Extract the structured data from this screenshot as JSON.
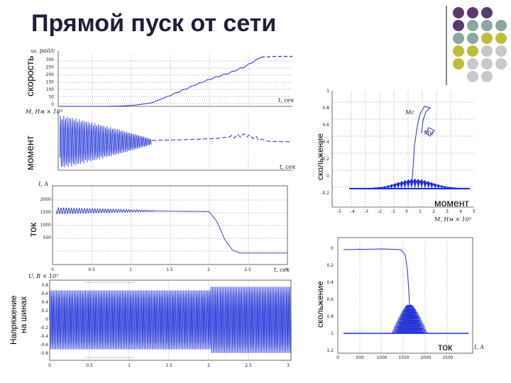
{
  "title": "Прямой пуск от сети",
  "colors": {
    "title": "#1f1f3a",
    "signal": "#1d2fd6",
    "dot_purple": "#5a3a6e",
    "dot_teal": "#8aa6a5",
    "dot_olive": "#bdbd3a",
    "dot_gray": "#c8c8cc"
  },
  "labels": {
    "speed": "скорость",
    "torque": "момент",
    "current": "ток",
    "voltage_line1": "Напряжение",
    "voltage_line2": "на шинах",
    "slip_top": "скольжение",
    "slip_bottom": "скольжение",
    "torque_right": "момент",
    "current_right": "ток"
  },
  "chart_data": [
    {
      "type": "line",
      "name": "speed",
      "axis_label_y": "ω, рад/с",
      "axis_label_x": "t, сек",
      "x": [
        0,
        0.2,
        0.4,
        0.6,
        0.8,
        1.0,
        1.2,
        1.4,
        1.6,
        1.8,
        2.0,
        2.2,
        2.4,
        2.6,
        2.8,
        3.0
      ],
      "y": [
        0,
        0,
        0,
        0,
        2,
        8,
        22,
        60,
        100,
        140,
        175,
        205,
        245,
        300,
        305,
        305
      ],
      "ylim": [
        0,
        320
      ],
      "yticks": [
        "300",
        "250",
        "200",
        "150",
        "100",
        "50",
        "0"
      ]
    },
    {
      "type": "line",
      "name": "torque",
      "axis_label_y": "M, Нм × 10³",
      "axis_label_x": "t, сек",
      "envelope_x": [
        0,
        0.2,
        0.4,
        0.6,
        0.8,
        1.0,
        1.2
      ],
      "envelope_amp": [
        1.0,
        0.9,
        0.75,
        0.6,
        0.45,
        0.28,
        0.1
      ],
      "tail_x": [
        1.2,
        1.6,
        2.0,
        2.4,
        2.7,
        3.0
      ],
      "tail_y": [
        0.05,
        0.08,
        0.12,
        0.25,
        0.02,
        0.0
      ],
      "ylim": [
        -1,
        1
      ]
    },
    {
      "type": "line",
      "name": "current",
      "axis_label_y": "I, A",
      "axis_label_x": "t, сек",
      "x": [
        0,
        0.5,
        1.0,
        1.5,
        2.0,
        2.1,
        2.2,
        2.3,
        2.4,
        3.0
      ],
      "y": [
        1500,
        1500,
        1500,
        1490,
        1480,
        1200,
        700,
        400,
        320,
        320
      ],
      "ripple_until": 1.3,
      "ylim": [
        0,
        2000
      ],
      "yticks": [
        "2000",
        "1500",
        "1000",
        "500"
      ],
      "xticks": [
        "0",
        "0.5",
        "1",
        "1.5",
        "2",
        "2.5",
        "3"
      ]
    },
    {
      "type": "line",
      "name": "bus_voltage",
      "axis_label_y": "U, B × 10³",
      "axis_label_x": "t, сек",
      "amplitude_before": 0.8,
      "amplitude_after": 0.9,
      "step_at": 2.0,
      "ylim": [
        -1,
        1
      ],
      "yticks": [
        "0.8",
        "0.6",
        "0.4",
        "0.2",
        "0",
        "-0.2",
        "-0.4",
        "-0.6",
        "-0.8"
      ],
      "xticks": [
        "0",
        "0.5",
        "1",
        "1.5",
        "2",
        "2.5",
        "3"
      ]
    },
    {
      "type": "line",
      "name": "slip_vs_torque",
      "axis_label_x": "M, Нм × 10³",
      "curve_labels": [
        "Mс",
        "Mн"
      ],
      "yticks": [
        "1",
        "0.8",
        "0.6",
        "0.4",
        "0.2",
        "0",
        "-0.2"
      ],
      "xticks": [
        "-5",
        "-4",
        "-3",
        "-2",
        "-1",
        "0",
        "1",
        "2",
        "3",
        "4",
        "5"
      ]
    },
    {
      "type": "line",
      "name": "slip_vs_current",
      "axis_label_x": "I, A",
      "yticks": [
        "0",
        "0.2",
        "0.4",
        "0.6",
        "0.8",
        "1",
        "1.2"
      ],
      "xticks": [
        "0",
        "500",
        "1000",
        "1500",
        "2000",
        "2500"
      ]
    }
  ]
}
